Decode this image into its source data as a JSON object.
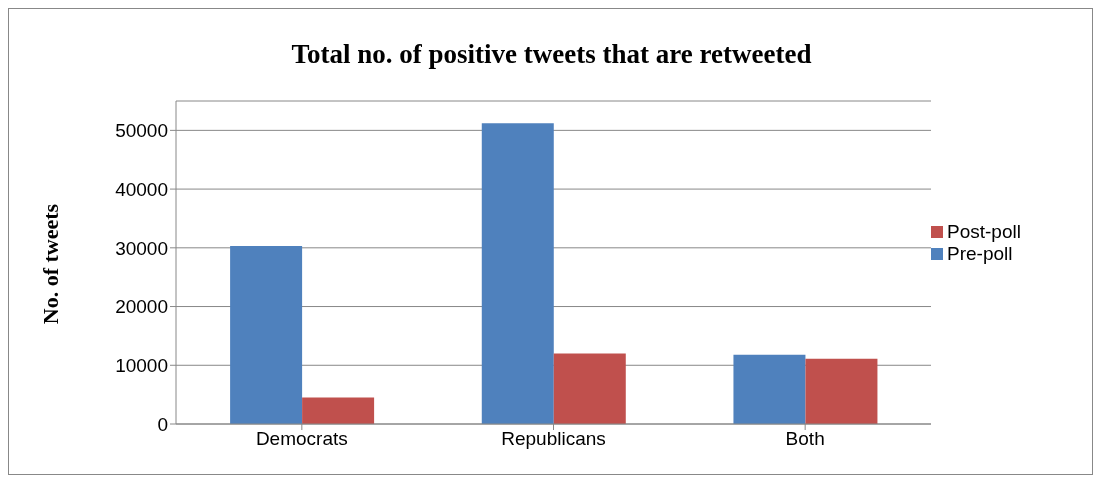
{
  "chart_data": {
    "type": "bar",
    "title": "Total no. of positive tweets that are retweeted",
    "ylabel": "No. of tweets",
    "categories": [
      "Democrats",
      "Republicans",
      "Both"
    ],
    "series": [
      {
        "name": "Pre-poll",
        "color": "#4f81bd",
        "values": [
          30300,
          51200,
          11800
        ]
      },
      {
        "name": "Post-poll",
        "color": "#c0504d",
        "values": [
          4500,
          12000,
          11100
        ]
      }
    ],
    "ylim": [
      0,
      55000
    ],
    "yticks": [
      0,
      10000,
      20000,
      30000,
      40000,
      50000
    ],
    "grid": "y",
    "legend": "right"
  }
}
